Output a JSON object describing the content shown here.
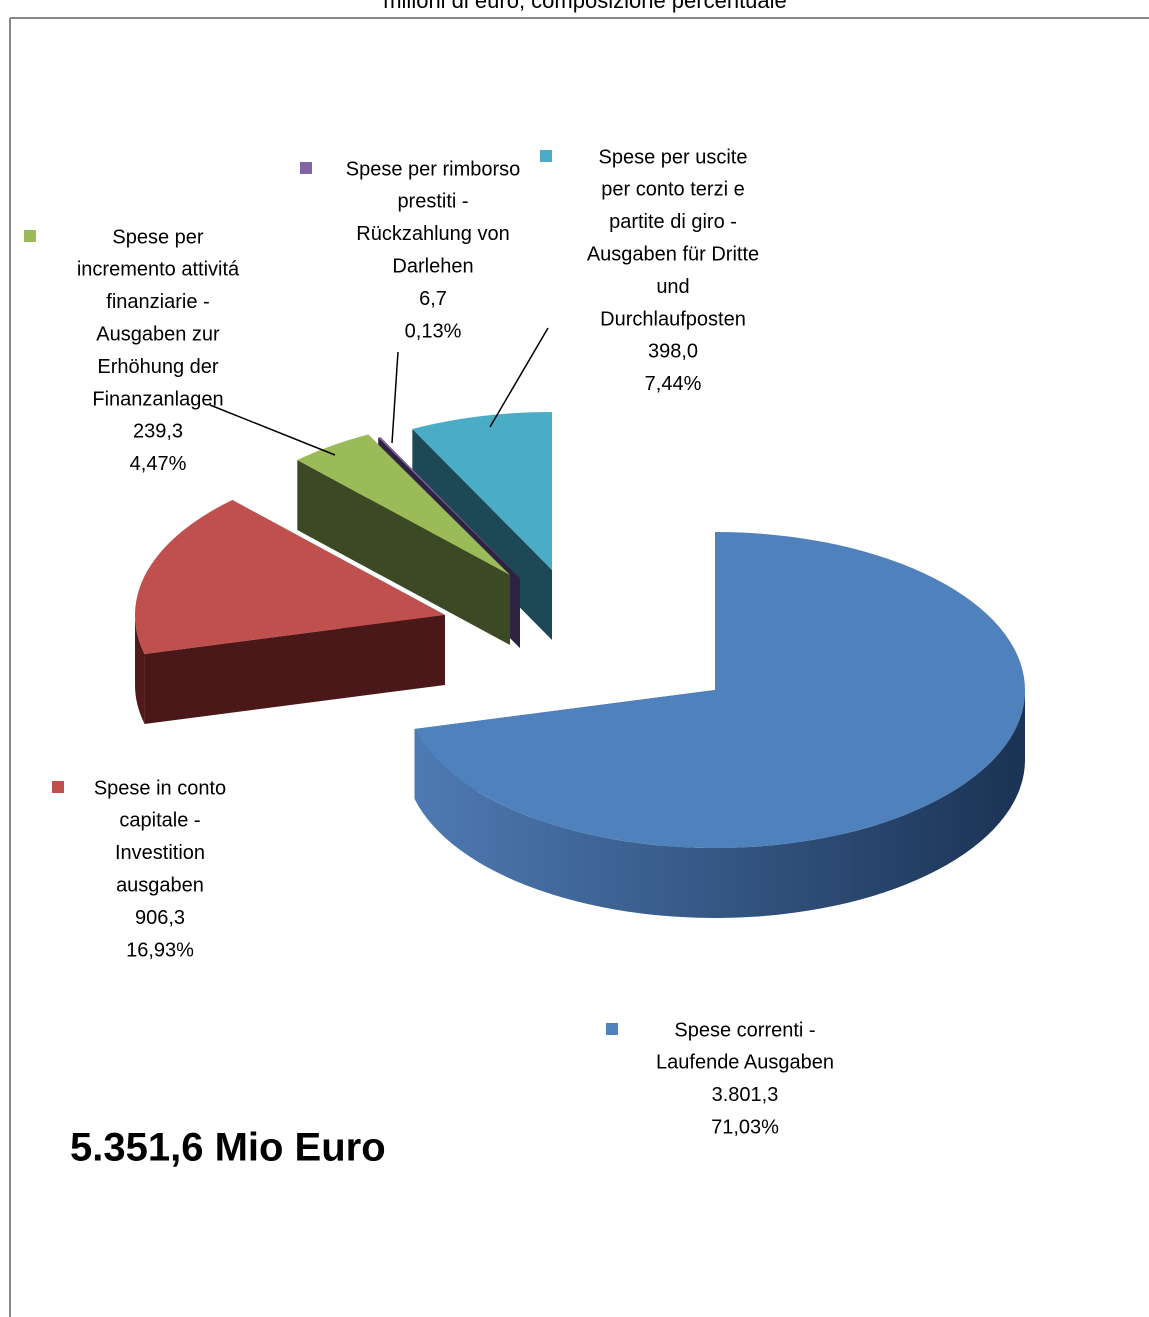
{
  "chart_data": {
    "type": "pie3d",
    "title": "milioni di euro, composizione percentuale",
    "categories": [
      [
        "Spese correnti -",
        "Laufende Ausgaben"
      ],
      [
        "Spese in conto",
        "capitale -",
        "Investition",
        "ausgaben"
      ],
      [
        "Spese per",
        "incremento attivitá",
        "finanziarie -",
        "Ausgaben zur",
        "Erhöhung der",
        "Finanzanlagen"
      ],
      [
        "Spese per rimborso",
        "prestiti -",
        "Rückzahlung von",
        "Darlehen"
      ],
      [
        "Spese per uscite",
        "per conto terzi  e",
        "partite di giro -",
        "Ausgaben für Dritte",
        "und",
        "Durchlaufposten"
      ]
    ],
    "values": [
      3801.3,
      906.3,
      239.3,
      6.7,
      398.0
    ],
    "value_labels": [
      "3.801,3",
      "906,3",
      "239,3",
      "6,7",
      "398,0"
    ],
    "percentages": [
      71.03,
      16.93,
      4.47,
      0.13,
      7.44
    ],
    "percentage_labels": [
      "71,03%",
      "16,93%",
      "4,47%",
      "0,13%",
      "7,44%"
    ],
    "colors": [
      "#4f81bd",
      "#c0504d",
      "#9bbb59",
      "#8064a2",
      "#4bacc6"
    ],
    "annotation": "5.351,6  Mio Euro"
  }
}
